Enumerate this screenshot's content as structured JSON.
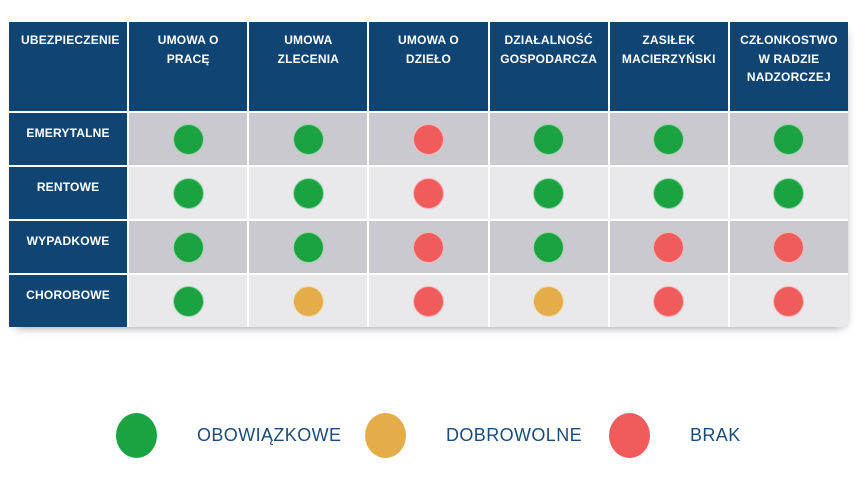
{
  "chart_data": {
    "type": "table",
    "corner_label": "UBEZPIECZENIE",
    "columns": [
      "UMOWA O PRACĘ",
      "UMOWA ZLECENIA",
      "UMOWA O DZIEŁO",
      "DZIAŁALNOŚĆ GOSPODARCZA",
      "ZASIŁEK MACIERZYŃSKI",
      "CZŁONKOSTWO W RADZIE NADZORCZEJ"
    ],
    "rows": [
      {
        "label": "EMERYTALNE",
        "cells": [
          "obowiazkowe",
          "obowiazkowe",
          "brak",
          "obowiazkowe",
          "obowiazkowe",
          "obowiazkowe"
        ]
      },
      {
        "label": "RENTOWE",
        "cells": [
          "obowiazkowe",
          "obowiazkowe",
          "brak",
          "obowiazkowe",
          "obowiazkowe",
          "obowiazkowe"
        ]
      },
      {
        "label": "WYPADKOWE",
        "cells": [
          "obowiazkowe",
          "obowiazkowe",
          "brak",
          "obowiazkowe",
          "brak",
          "brak"
        ]
      },
      {
        "label": "CHOROBOWE",
        "cells": [
          "obowiazkowe",
          "dobrowolne",
          "brak",
          "dobrowolne",
          "brak",
          "brak"
        ]
      }
    ],
    "legend": [
      {
        "key": "obowiazkowe",
        "label": "OBOWIĄZKOWE",
        "color": "#1CA341"
      },
      {
        "key": "dobrowolne",
        "label": "DOBROWOLNE",
        "color": "#E4AD49"
      },
      {
        "key": "brak",
        "label": "BRAK",
        "color": "#F05C5C"
      }
    ],
    "legend_position": "bottom"
  },
  "colors": {
    "header_bg": "#104573",
    "header_text": "#FFFFFF",
    "row_dark_bg": "#C9C9CF",
    "row_light_bg": "#E9E8EA",
    "separator": "#FFFFFF",
    "legend_text": "#1B4B7C",
    "status": {
      "obowiazkowe": "#1CA341",
      "dobrowolne": "#E4AD49",
      "brak": "#F05C5C"
    }
  }
}
